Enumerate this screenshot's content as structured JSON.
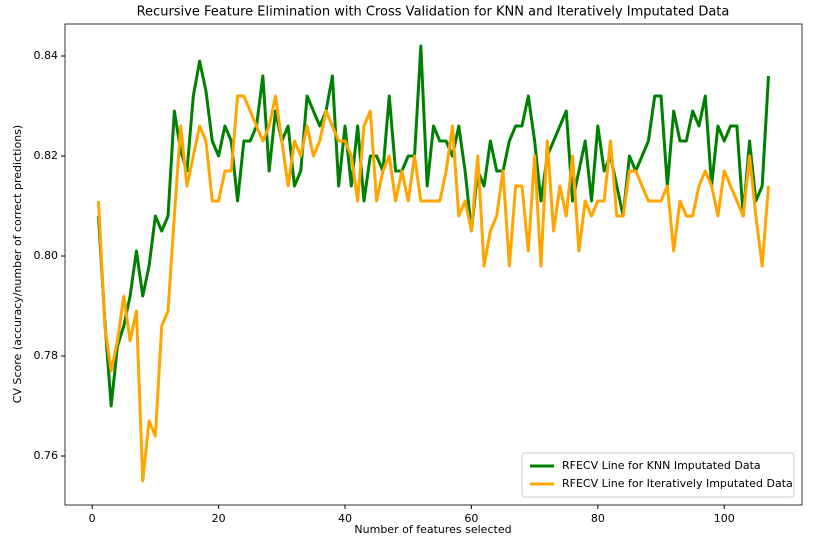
{
  "chart_data": {
    "type": "line",
    "title": "Recursive Feature Elimination with Cross Validation for KNN and Iteratively Imputated Data",
    "xlabel": "Number of features selected",
    "ylabel": "CV Score (accuracy/number of correct predictions)",
    "x": [
      1,
      2,
      3,
      4,
      5,
      6,
      7,
      8,
      9,
      10,
      11,
      12,
      13,
      14,
      15,
      16,
      17,
      18,
      19,
      20,
      21,
      22,
      23,
      24,
      25,
      26,
      27,
      28,
      29,
      30,
      31,
      32,
      33,
      34,
      35,
      36,
      37,
      38,
      39,
      40,
      41,
      42,
      43,
      44,
      45,
      46,
      47,
      48,
      49,
      50,
      51,
      52,
      53,
      54,
      55,
      56,
      57,
      58,
      59,
      60,
      61,
      62,
      63,
      64,
      65,
      66,
      67,
      68,
      69,
      70,
      71,
      72,
      73,
      74,
      75,
      76,
      77,
      78,
      79,
      80,
      81,
      82,
      83,
      84,
      85,
      86,
      87,
      88,
      89,
      90,
      91,
      92,
      93,
      94,
      95,
      96,
      97,
      98,
      99,
      100,
      101,
      102,
      103,
      104,
      105,
      106,
      107
    ],
    "series": [
      {
        "name": "RFECV Line for KNN Imputated Data",
        "color": "#008000",
        "values": [
          0.808,
          0.787,
          0.77,
          0.782,
          0.786,
          0.792,
          0.801,
          0.792,
          0.798,
          0.808,
          0.805,
          0.808,
          0.829,
          0.821,
          0.817,
          0.832,
          0.839,
          0.833,
          0.823,
          0.82,
          0.826,
          0.823,
          0.811,
          0.823,
          0.823,
          0.826,
          0.836,
          0.817,
          0.829,
          0.823,
          0.826,
          0.814,
          0.817,
          0.832,
          0.829,
          0.826,
          0.829,
          0.836,
          0.814,
          0.826,
          0.814,
          0.826,
          0.811,
          0.82,
          0.82,
          0.817,
          0.832,
          0.817,
          0.817,
          0.82,
          0.82,
          0.842,
          0.814,
          0.826,
          0.823,
          0.823,
          0.82,
          0.826,
          0.817,
          0.805,
          0.817,
          0.814,
          0.823,
          0.817,
          0.817,
          0.823,
          0.826,
          0.826,
          0.832,
          0.823,
          0.811,
          0.82,
          0.823,
          0.826,
          0.829,
          0.811,
          0.817,
          0.823,
          0.811,
          0.826,
          0.817,
          0.82,
          0.814,
          0.808,
          0.82,
          0.817,
          0.82,
          0.823,
          0.832,
          0.832,
          0.814,
          0.829,
          0.823,
          0.823,
          0.829,
          0.826,
          0.832,
          0.814,
          0.826,
          0.823,
          0.826,
          0.826,
          0.808,
          0.823,
          0.811,
          0.814,
          0.836
        ]
      },
      {
        "name": "RFECV Line for Iteratively Imputated Data",
        "color": "#ffa500",
        "values": [
          0.811,
          0.786,
          0.777,
          0.783,
          0.792,
          0.783,
          0.789,
          0.755,
          0.767,
          0.764,
          0.786,
          0.789,
          0.808,
          0.826,
          0.814,
          0.82,
          0.826,
          0.823,
          0.811,
          0.811,
          0.817,
          0.817,
          0.832,
          0.832,
          0.829,
          0.826,
          0.823,
          0.826,
          0.832,
          0.823,
          0.814,
          0.823,
          0.82,
          0.826,
          0.82,
          0.823,
          0.829,
          0.826,
          0.823,
          0.823,
          0.82,
          0.811,
          0.826,
          0.829,
          0.811,
          0.817,
          0.82,
          0.811,
          0.817,
          0.811,
          0.82,
          0.811,
          0.811,
          0.811,
          0.811,
          0.817,
          0.826,
          0.808,
          0.811,
          0.805,
          0.82,
          0.798,
          0.805,
          0.808,
          0.817,
          0.798,
          0.814,
          0.814,
          0.801,
          0.82,
          0.798,
          0.823,
          0.805,
          0.814,
          0.808,
          0.82,
          0.801,
          0.811,
          0.808,
          0.811,
          0.811,
          0.823,
          0.808,
          0.808,
          0.817,
          0.817,
          0.814,
          0.811,
          0.811,
          0.811,
          0.814,
          0.801,
          0.811,
          0.808,
          0.808,
          0.814,
          0.817,
          0.814,
          0.808,
          0.817,
          0.814,
          0.811,
          0.808,
          0.82,
          0.808,
          0.798,
          0.814
        ]
      }
    ],
    "xlim": [
      -4.3,
      112.3
    ],
    "xticks": [
      0,
      20,
      40,
      60,
      80,
      100
    ],
    "ylim": [
      0.7502,
      0.8464
    ],
    "yticks": [
      0.76,
      0.78,
      {
        "value": 0.8,
        "label": "0.80"
      },
      0.82,
      0.84
    ],
    "grid": false,
    "legend": "lower right"
  }
}
